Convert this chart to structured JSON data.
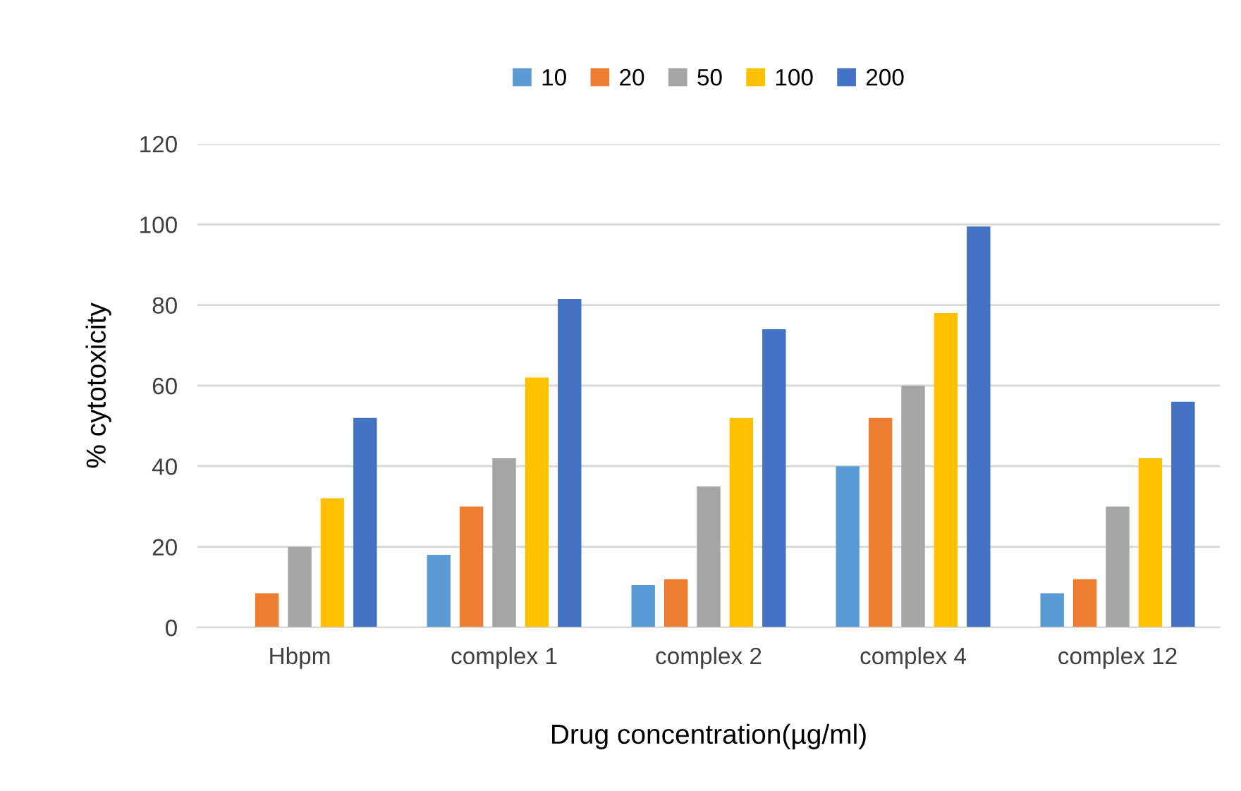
{
  "chart_data": {
    "type": "bar",
    "xlabel": "Drug concentration(µg/ml)",
    "ylabel": "% cytotoxicity",
    "categories": [
      "Hbpm",
      "complex 1",
      "complex 2",
      "complex 4",
      "complex 12"
    ],
    "series": [
      {
        "name": "10",
        "color": "#5b9bd5",
        "values": [
          0,
          18,
          10.5,
          40,
          8.5
        ]
      },
      {
        "name": "20",
        "color": "#ed7d31",
        "values": [
          8.5,
          30,
          12,
          52,
          12
        ]
      },
      {
        "name": "50",
        "color": "#a5a5a5",
        "values": [
          20,
          42,
          35,
          60,
          30
        ]
      },
      {
        "name": "100",
        "color": "#ffc000",
        "values": [
          32,
          62,
          52,
          78,
          42
        ]
      },
      {
        "name": "200",
        "color": "#4472c4",
        "values": [
          52,
          81.5,
          74,
          99.5,
          56
        ]
      }
    ],
    "ylim": [
      0,
      120
    ],
    "yticks": [
      0,
      20,
      40,
      60,
      80,
      100,
      120
    ],
    "grid": "y",
    "legend": "top"
  }
}
